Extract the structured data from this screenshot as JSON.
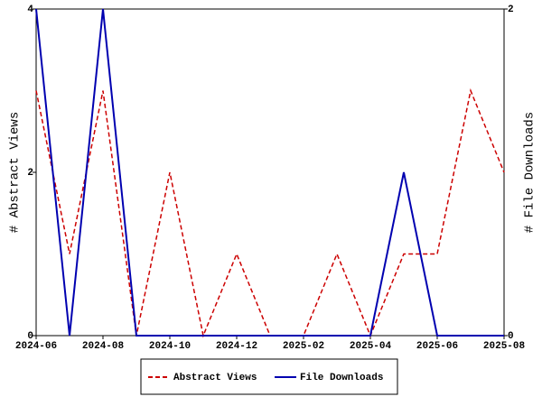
{
  "chart_data": {
    "type": "line",
    "categories": [
      "2024-06",
      null,
      "2024-08",
      null,
      "2024-10",
      null,
      "2024-12",
      null,
      "2025-02",
      null,
      "2025-04",
      null,
      "2025-06",
      null,
      "2025-08"
    ],
    "series": [
      {
        "name": "Abstract Views",
        "color": "#cc0000",
        "line_style": "dashed",
        "values": [
          3,
          1,
          3,
          0,
          2,
          0,
          1,
          0,
          0,
          1,
          0,
          1,
          1,
          3,
          2
        ]
      },
      {
        "name": "File Downloads",
        "color": "#0000b0",
        "line_style": "solid",
        "axis": "y2",
        "values": [
          2,
          0,
          2,
          0,
          0,
          0,
          0,
          0,
          0,
          0,
          0,
          1,
          0,
          0,
          0
        ]
      }
    ],
    "ylabel": "# Abstract Views",
    "y2label": "# File Downloads",
    "ylim": [
      0,
      4
    ],
    "yticks": [
      0,
      2,
      4
    ],
    "y2lim": [
      0,
      2
    ],
    "y2ticks": [
      0,
      2
    ],
    "legend": "bottom"
  }
}
